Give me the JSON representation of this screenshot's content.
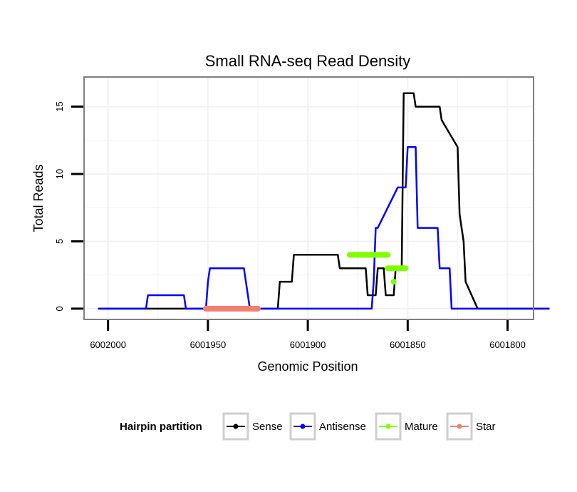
{
  "chart_data": {
    "type": "line",
    "title": "Small RNA-seq Read Density",
    "xlabel": "Genomic Position",
    "ylabel": "Total Reads",
    "x_reversed": true,
    "xlim": [
      6002012,
      6001787
    ],
    "ylim": [
      -0.8,
      17.2
    ],
    "x_ticks": [
      6002000,
      6001950,
      6001900,
      6001850,
      6001800
    ],
    "x_tick_labels": [
      "6002000",
      "6001950",
      "6001900",
      "6001850",
      "6001800"
    ],
    "y_ticks": [
      0,
      5,
      10,
      15
    ],
    "y_tick_labels": [
      "0",
      "5",
      "10",
      "15"
    ],
    "grid": true,
    "legend": {
      "title": "Hairpin partition",
      "position": "bottom",
      "entries": [
        {
          "name": "Sense",
          "color": "#000000"
        },
        {
          "name": "Antisense",
          "color": "#0000ff"
        },
        {
          "name": "Mature",
          "color": "#7fff00"
        },
        {
          "name": "Star",
          "color": "#f08070"
        }
      ]
    },
    "series": [
      {
        "name": "Sense",
        "color": "#000000",
        "style": "line",
        "x": [
          6002005,
          6001915,
          6001914,
          6001908,
          6001907,
          6001885,
          6001884,
          6001871,
          6001870,
          6001866,
          6001865,
          6001862,
          6001861,
          6001857,
          6001856,
          6001853,
          6001852,
          6001847,
          6001846,
          6001834,
          6001833,
          6001825,
          6001824,
          6001822,
          6001821,
          6001815,
          6001779
        ],
        "y": [
          0,
          0,
          2,
          2,
          4,
          4,
          3,
          3,
          1,
          1,
          3,
          3,
          1,
          1,
          3,
          3,
          16,
          16,
          15,
          15,
          14,
          12,
          7,
          5,
          2,
          0,
          0
        ]
      },
      {
        "name": "Antisense",
        "color": "#0000ff",
        "style": "line",
        "x": [
          6002005,
          6001981,
          6001980,
          6001962,
          6001961,
          6001951,
          6001950,
          6001949,
          6001932,
          6001931,
          6001929,
          6001868,
          6001867,
          6001866,
          6001865,
          6001855,
          6001854,
          6001851,
          6001850,
          6001846,
          6001845,
          6001835,
          6001834,
          6001829,
          6001828,
          6001779
        ],
        "y": [
          0,
          0,
          1,
          1,
          0,
          0,
          2,
          3,
          3,
          2,
          0,
          0,
          2,
          6,
          6,
          9,
          9,
          9,
          12,
          12,
          6,
          6,
          3,
          3,
          0,
          0
        ]
      },
      {
        "name": "Mature",
        "color": "#7fff00",
        "style": "band",
        "segments": [
          {
            "x_start": 6001879,
            "x_end": 6001860,
            "y": 4
          },
          {
            "x_start": 6001860,
            "x_end": 6001851,
            "y": 3
          },
          {
            "x_start": 6001857,
            "x_end": 6001857,
            "y": 2
          }
        ]
      },
      {
        "name": "Star",
        "color": "#f08070",
        "style": "band",
        "segments": [
          {
            "x_start": 6001951,
            "x_end": 6001925,
            "y": 0
          }
        ]
      }
    ]
  }
}
